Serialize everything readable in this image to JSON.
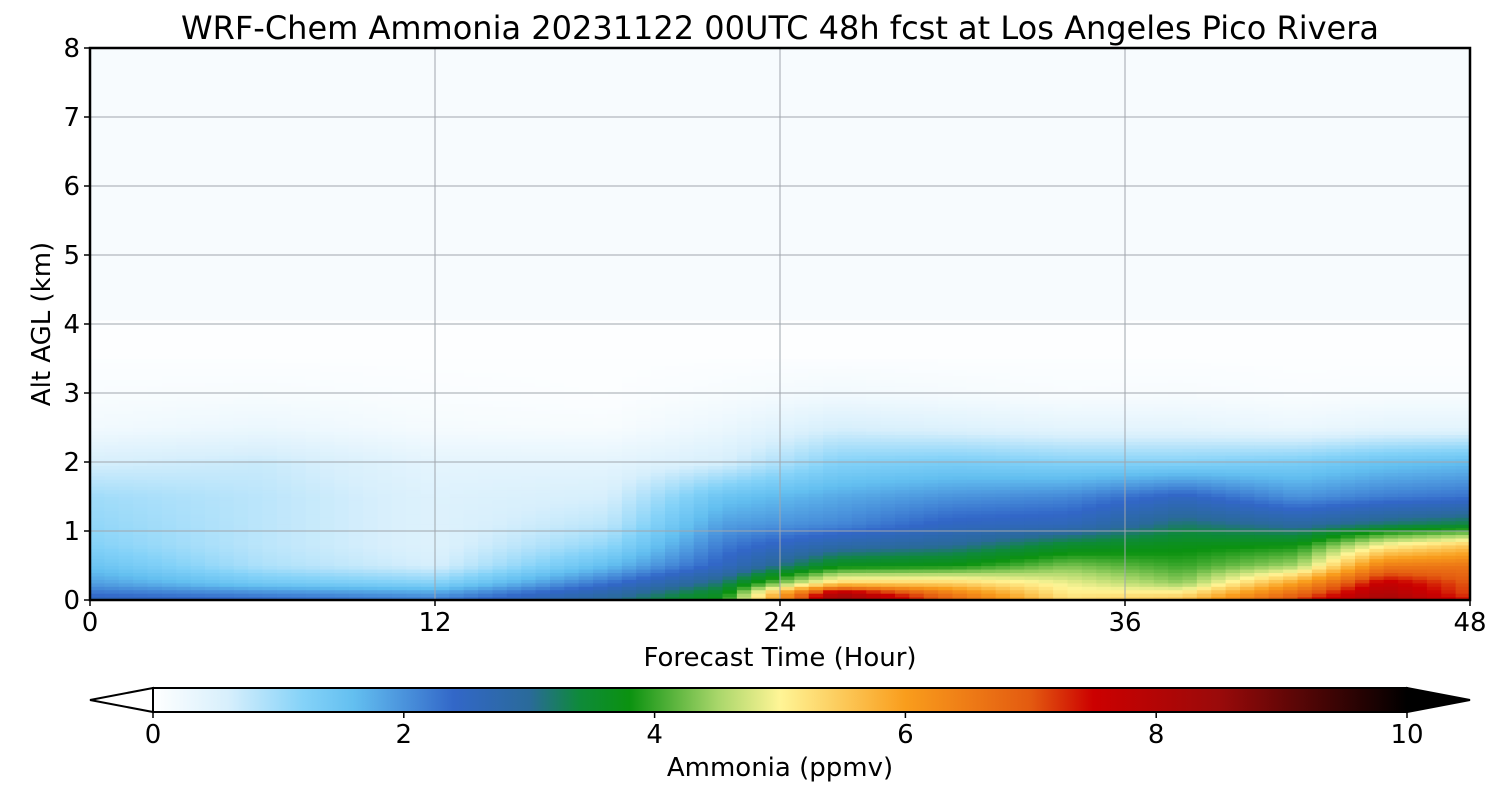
{
  "chart_data": {
    "type": "heatmap",
    "title": "WRF-Chem Ammonia  20231122 00UTC 48h fcst at Los Angeles Pico Rivera",
    "xlabel": "Forecast Time (Hour)",
    "ylabel": "Alt AGL (km)",
    "xlim": [
      0,
      48
    ],
    "ylim": [
      0,
      8
    ],
    "x_ticks": [
      0,
      12,
      24,
      36,
      48
    ],
    "x_tick_labels": [
      "0",
      "12",
      "24",
      "36",
      "48"
    ],
    "y_ticks": [
      0,
      1,
      2,
      3,
      4,
      5,
      6,
      7,
      8
    ],
    "y_tick_labels": [
      "0",
      "1",
      "2",
      "3",
      "4",
      "5",
      "6",
      "7",
      "8"
    ],
    "grid": true,
    "colorbar": {
      "label": "Ammonia  (ppmv)",
      "range": [
        0,
        10
      ],
      "ticks": [
        0,
        2,
        4,
        6,
        8,
        10
      ],
      "tick_labels": [
        "0",
        "2",
        "4",
        "6",
        "8",
        "10"
      ],
      "extend": "both",
      "stops": [
        {
          "v": 0,
          "color": "#ffffff"
        },
        {
          "v": 0.6,
          "color": "#d7effc"
        },
        {
          "v": 1.2,
          "color": "#84d2f8"
        },
        {
          "v": 1.6,
          "color": "#63bff0"
        },
        {
          "v": 2.4,
          "color": "#3267c8"
        },
        {
          "v": 3.0,
          "color": "#2a6a9a"
        },
        {
          "v": 3.4,
          "color": "#0e8a3a"
        },
        {
          "v": 3.8,
          "color": "#0b9210"
        },
        {
          "v": 4.5,
          "color": "#a8d66a"
        },
        {
          "v": 5.0,
          "color": "#fff596"
        },
        {
          "v": 6.0,
          "color": "#f99d1c"
        },
        {
          "v": 7.0,
          "color": "#e35a10"
        },
        {
          "v": 7.5,
          "color": "#cc0000"
        },
        {
          "v": 8.5,
          "color": "#9a0a0a"
        },
        {
          "v": 10,
          "color": "#000000"
        }
      ]
    },
    "field_grid": {
      "x": [
        0,
        6,
        12,
        18,
        22,
        26,
        30,
        34,
        38,
        42,
        45,
        48
      ],
      "z": [
        0,
        0.1,
        0.25,
        0.5,
        0.8,
        1.1,
        1.5,
        2.0,
        2.5,
        3.0,
        3.5
      ],
      "values": [
        [
          2.6,
          2.4,
          2.2,
          3.0,
          3.8,
          8.5,
          6.8,
          5.3,
          5.6,
          7.2,
          8.4,
          7.4
        ],
        [
          2.3,
          2.1,
          1.9,
          2.8,
          3.6,
          8.2,
          6.5,
          5.1,
          5.2,
          6.8,
          8.1,
          7.1
        ],
        [
          1.9,
          1.4,
          1.2,
          2.3,
          3.2,
          5.4,
          5.4,
          4.9,
          4.4,
          6.0,
          7.7,
          7.0
        ],
        [
          1.5,
          0.9,
          0.6,
          1.6,
          2.5,
          3.7,
          3.8,
          4.3,
          4.0,
          4.5,
          6.5,
          6.6
        ],
        [
          1.2,
          0.8,
          0.5,
          1.1,
          2.2,
          2.8,
          3.0,
          3.5,
          3.7,
          3.8,
          5.0,
          5.5
        ],
        [
          1.1,
          0.8,
          0.5,
          0.8,
          1.9,
          2.1,
          2.5,
          2.6,
          3.2,
          2.9,
          3.2,
          3.4
        ],
        [
          1.0,
          0.8,
          0.5,
          0.6,
          1.5,
          1.8,
          2.0,
          2.1,
          2.5,
          2.0,
          2.2,
          2.3
        ],
        [
          0.6,
          0.7,
          0.4,
          0.4,
          0.6,
          1.2,
          1.3,
          1.2,
          1.2,
          1.3,
          1.5,
          1.6
        ],
        [
          0.2,
          0.3,
          0.15,
          0.12,
          0.3,
          0.6,
          0.5,
          0.4,
          0.4,
          0.3,
          0.4,
          0.4
        ],
        [
          0.1,
          0.12,
          0.08,
          0.05,
          0.12,
          0.2,
          0.15,
          0.1,
          0.12,
          0.08,
          0.1,
          0.1
        ],
        [
          0.05,
          0.05,
          0.04,
          0.04,
          0.05,
          0.06,
          0.05,
          0.05,
          0.05,
          0.04,
          0.04,
          0.04
        ]
      ]
    }
  }
}
